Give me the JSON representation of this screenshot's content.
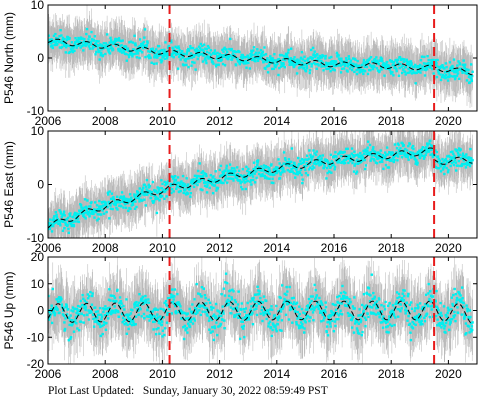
{
  "colors": {
    "scatter": "#00f0f0",
    "error_bar": "#b4b4b4",
    "model_line": "#000000",
    "event_line": "#e81b1b",
    "axis": "#000000"
  },
  "footer": {
    "label": "Plot Last Updated:",
    "timestamp": "Sunday, January 30, 2022 08:59:49 PST"
  },
  "chart_data": [
    {
      "type": "scatter",
      "ylabel": "P546 North (mm)",
      "xlim": [
        2006,
        2021
      ],
      "ylim": [
        -10,
        10
      ],
      "xticks": [
        2006,
        2008,
        2010,
        2012,
        2014,
        2016,
        2018,
        2020
      ],
      "yticks": [
        -10,
        0,
        10
      ],
      "xtick_labels": [
        "2006",
        "2008",
        "2010",
        "2012",
        "2014",
        "2016",
        "2018",
        "2020"
      ],
      "ytick_labels": [
        "-10",
        "0",
        "10"
      ],
      "events": [
        2010.25,
        2019.5
      ],
      "series": [
        {
          "kind": "daily-positions-with-error-bars",
          "x_start": 2006.0,
          "x_end": 2020.85,
          "trend_points": [
            [
              2006.0,
              3.2
            ],
            [
              2008.0,
              2.3
            ],
            [
              2010.25,
              1.0
            ],
            [
              2012.0,
              0.3
            ],
            [
              2014.0,
              -0.5
            ],
            [
              2016.0,
              -1.2
            ],
            [
              2018.0,
              -1.5
            ],
            [
              2019.5,
              -1.9
            ],
            [
              2020.85,
              -2.7
            ]
          ],
          "seasonal_amplitude": 0.5,
          "scatter_sd": 0.9,
          "error_bar_halfwidth": 3.5
        },
        {
          "kind": "model-fit-dashed",
          "x_start": 2006.0,
          "x_end": 2020.85,
          "trend_points": [
            [
              2006.0,
              3.2
            ],
            [
              2008.0,
              2.3
            ],
            [
              2010.25,
              1.0
            ],
            [
              2012.0,
              0.3
            ],
            [
              2014.0,
              -0.5
            ],
            [
              2016.0,
              -1.2
            ],
            [
              2018.0,
              -1.5
            ],
            [
              2019.5,
              -1.9
            ],
            [
              2020.85,
              -2.7
            ]
          ],
          "seasonal_amplitude": 0.5
        }
      ]
    },
    {
      "type": "scatter",
      "ylabel": "P546 East (mm)",
      "xlim": [
        2006,
        2021
      ],
      "ylim": [
        -10,
        10
      ],
      "xticks": [
        2006,
        2008,
        2010,
        2012,
        2014,
        2016,
        2018,
        2020
      ],
      "yticks": [
        -10,
        0,
        10
      ],
      "xtick_labels": [
        "2006",
        "2008",
        "2010",
        "2012",
        "2014",
        "2016",
        "2018",
        "2020"
      ],
      "ytick_labels": [
        "-10",
        "0",
        "10"
      ],
      "events": [
        2010.25,
        2019.5
      ],
      "series": [
        {
          "kind": "daily-positions-with-error-bars",
          "x_start": 2006.0,
          "x_end": 2020.85,
          "trend_points": [
            [
              2006.0,
              -7.8
            ],
            [
              2008.0,
              -4.0
            ],
            [
              2010.25,
              -0.7
            ],
            [
              2012.0,
              1.2
            ],
            [
              2014.0,
              3.0
            ],
            [
              2016.0,
              4.5
            ],
            [
              2018.0,
              5.5
            ],
            [
              2019.49,
              6.3
            ],
            [
              2019.51,
              4.3
            ],
            [
              2020.85,
              4.6
            ]
          ],
          "seasonal_amplitude": 0.6,
          "scatter_sd": 0.9,
          "error_bar_halfwidth": 3.5
        },
        {
          "kind": "model-fit-dashed",
          "x_start": 2006.0,
          "x_end": 2020.85,
          "trend_points": [
            [
              2006.0,
              -7.8
            ],
            [
              2008.0,
              -4.0
            ],
            [
              2010.25,
              -0.7
            ],
            [
              2012.0,
              1.2
            ],
            [
              2014.0,
              3.0
            ],
            [
              2016.0,
              4.5
            ],
            [
              2018.0,
              5.5
            ],
            [
              2019.49,
              6.3
            ],
            [
              2019.51,
              4.3
            ],
            [
              2020.85,
              4.6
            ]
          ],
          "seasonal_amplitude": 0.6
        }
      ]
    },
    {
      "type": "scatter",
      "ylabel": "P546 Up (mm)",
      "xlim": [
        2006,
        2021
      ],
      "ylim": [
        -20,
        20
      ],
      "xticks": [
        2006,
        2008,
        2010,
        2012,
        2014,
        2016,
        2018,
        2020
      ],
      "yticks": [
        -20,
        -10,
        0,
        10,
        20
      ],
      "xtick_labels": [
        "2006",
        "2008",
        "2010",
        "2012",
        "2014",
        "2016",
        "2018",
        "2020"
      ],
      "ytick_labels": [
        "-20",
        "-10",
        "0",
        "10",
        "20"
      ],
      "events": [
        2010.25,
        2019.5
      ],
      "series": [
        {
          "kind": "daily-positions-with-error-bars",
          "x_start": 2006.0,
          "x_end": 2020.85,
          "trend_points": [
            [
              2006.0,
              -1.0
            ],
            [
              2010.25,
              -0.5
            ],
            [
              2014.0,
              0.0
            ],
            [
              2019.5,
              0.0
            ],
            [
              2020.85,
              -1.5
            ]
          ],
          "seasonal_amplitude": 3.5,
          "scatter_sd": 3.0,
          "error_bar_halfwidth": 9
        },
        {
          "kind": "model-fit-dashed",
          "x_start": 2006.0,
          "x_end": 2020.85,
          "trend_points": [
            [
              2006.0,
              -1.0
            ],
            [
              2010.25,
              -0.5
            ],
            [
              2014.0,
              0.0
            ],
            [
              2019.5,
              0.0
            ],
            [
              2020.85,
              -1.5
            ]
          ],
          "seasonal_amplitude": 3.5
        }
      ]
    }
  ]
}
